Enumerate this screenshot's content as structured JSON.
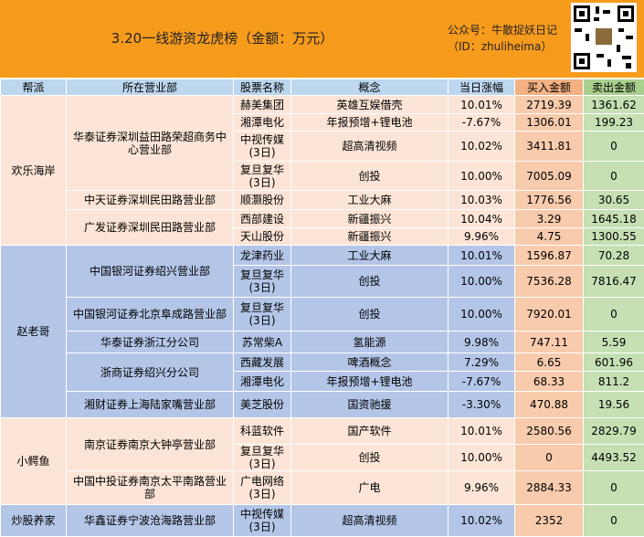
{
  "header": {
    "title": "3.20一线游资龙虎榜（金额：万元）",
    "account": "公众号：牛散捉妖日记",
    "account_id": "（ID：zhuliheima）"
  },
  "table": {
    "columns": [
      "帮派",
      "所在营业部",
      "股票名称",
      "概念",
      "当日涨幅",
      "买入金额",
      "卖出金额"
    ],
    "groups": [
      {
        "name": "欢乐海岸",
        "depts": [
          {
            "name": "华泰证券深圳益田路荣超商务中心营业部",
            "stocks": [
              {
                "stock": "赫美集团",
                "concept": "英雄互娱借壳",
                "change": "10.01%",
                "buy": 2719.39,
                "sell": 1361.62
              },
              {
                "stock": "湘潭电化",
                "concept": "年报预增+锂电池",
                "change": "-7.67%",
                "buy": 1306.01,
                "sell": 199.23
              },
              {
                "stock": "中视传媒\n(3日)",
                "concept": "超高清视频",
                "change": "10.02%",
                "buy": 3411.81,
                "sell": 0
              },
              {
                "stock": "复旦复华\n(3日)",
                "concept": "创投",
                "change": "10.00%",
                "buy": 7005.09,
                "sell": 0
              }
            ]
          },
          {
            "name": "中天证券深圳民田路营业部",
            "stocks": [
              {
                "stock": "顺灏股份",
                "concept": "工业大麻",
                "change": "10.03%",
                "buy": 1776.56,
                "sell": 30.65
              }
            ]
          },
          {
            "name": "广发证券深圳民田路营业部",
            "stocks": [
              {
                "stock": "西部建设",
                "concept": "新疆振兴",
                "change": "10.04%",
                "buy": 3.29,
                "sell": 1645.18
              },
              {
                "stock": "天山股份",
                "concept": "新疆振兴",
                "change": "9.96%",
                "buy": 4.75,
                "sell": 1300.55
              }
            ]
          }
        ]
      },
      {
        "name": "赵老哥",
        "depts": [
          {
            "name": "中国银河证券绍兴营业部",
            "stocks": [
              {
                "stock": "龙津药业",
                "concept": "工业大麻",
                "change": "10.01%",
                "buy": 1596.87,
                "sell": 70.28
              },
              {
                "stock": "复旦复华\n(3日)",
                "concept": "创投",
                "change": "10.00%",
                "buy": 7536.28,
                "sell": 7816.47
              }
            ]
          },
          {
            "name": "中国银河证券北京阜成路营业部",
            "stocks": [
              {
                "stock": "复旦复华\n(3日)",
                "concept": "创投",
                "change": "10.00%",
                "buy": 7920.01,
                "sell": 0
              }
            ]
          },
          {
            "name": "华泰证券浙江分公司",
            "stocks": [
              {
                "stock": "苏常柴A",
                "concept": "氢能源",
                "change": "9.98%",
                "buy": 747.11,
                "sell": 5.59
              }
            ]
          },
          {
            "name": "浙商证券绍兴分公司",
            "stocks": [
              {
                "stock": "西藏发展",
                "concept": "啤酒概念",
                "change": "7.29%",
                "buy": 6.65,
                "sell": 601.96
              },
              {
                "stock": "湘潭电化",
                "concept": "年报预增+锂电池",
                "change": "-7.67%",
                "buy": 68.33,
                "sell": 811.2
              }
            ]
          },
          {
            "name": "湘财证券上海陆家嘴营业部",
            "stocks": [
              {
                "stock": "美芝股份",
                "concept": "国资驰援",
                "change": "-3.30%",
                "buy": 470.88,
                "sell": 19.56
              }
            ]
          }
        ]
      },
      {
        "name": "小鳄鱼",
        "depts": [
          {
            "name": "南京证券南京大钟亭营业部",
            "stocks": [
              {
                "stock": "科蓝软件",
                "concept": "国产软件",
                "change": "10.01%",
                "buy": 2580.56,
                "sell": 2829.79
              },
              {
                "stock": "复旦复华\n(3日)",
                "concept": "创投",
                "change": "10.00%",
                "buy": 0,
                "sell": 4493.52
              }
            ]
          },
          {
            "name": "中国中投证券南京太平南路营业部",
            "stocks": [
              {
                "stock": "广电网络\n(3日)",
                "concept": "广电",
                "change": "9.96%",
                "buy": 2884.33,
                "sell": 0
              }
            ]
          }
        ]
      },
      {
        "name": "炒股养家",
        "depts": [
          {
            "name": "华鑫证券宁波沧海路营业部",
            "stocks": [
              {
                "stock": "中视传媒\n(3日)",
                "concept": "超高清视频",
                "change": "10.02%",
                "buy": 2352,
                "sell": 0
              }
            ]
          }
        ]
      }
    ]
  }
}
